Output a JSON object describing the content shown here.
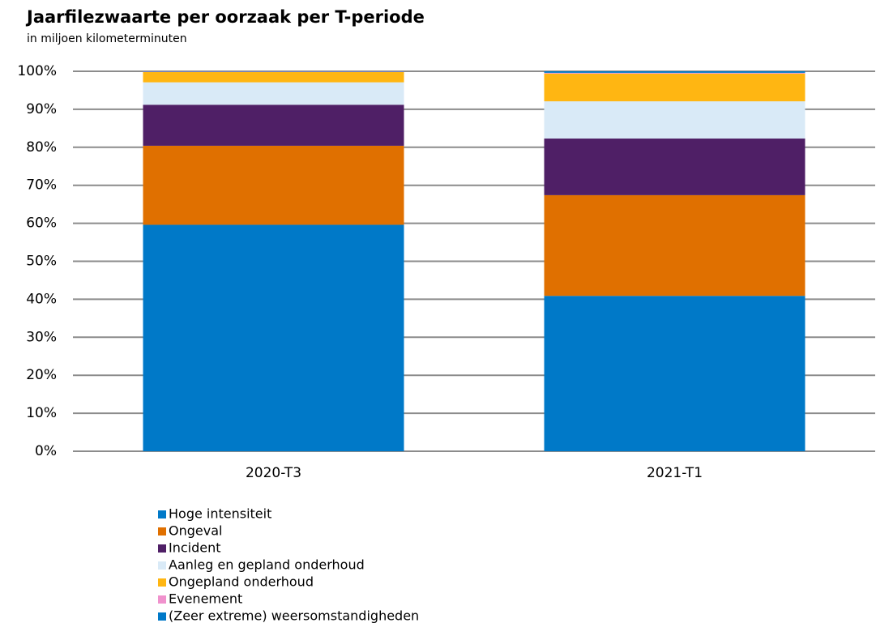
{
  "chart_data": {
    "type": "stacked_bar",
    "title": "Jaarfilezwaarte per oorzaak per T-periode",
    "subtitle": "in miljoen kilometerminuten",
    "categories": [
      "2020-T3",
      "2021-T1"
    ],
    "series": [
      {
        "name": "Hoge intensiteit",
        "color": "#0079c8",
        "values": [
          59.6,
          40.9
        ]
      },
      {
        "name": "Ongeval",
        "color": "#e07000",
        "values": [
          20.8,
          26.5
        ]
      },
      {
        "name": "Incident",
        "color": "#4f1f66",
        "values": [
          10.8,
          14.9
        ]
      },
      {
        "name": "Aanleg en gepland onderhoud",
        "color": "#d9eaf7",
        "values": [
          5.9,
          9.8
        ]
      },
      {
        "name": "Ongepland onderhoud",
        "color": "#ffb612",
        "values": [
          2.7,
          7.3
        ]
      },
      {
        "name": "Evenement",
        "color": "#f092cd",
        "values": [
          0.1,
          0.2
        ]
      },
      {
        "name": "(Zeer extreme) weersomstandigheden",
        "color": "#0079c8",
        "values": [
          0.1,
          0.4
        ]
      }
    ],
    "ylim": [
      0,
      100
    ],
    "yticks": [
      {
        "value": 0,
        "label": "0%"
      },
      {
        "value": 10,
        "label": "10%"
      },
      {
        "value": 20,
        "label": "20%"
      },
      {
        "value": 30,
        "label": "30%"
      },
      {
        "value": 40,
        "label": "40%"
      },
      {
        "value": 50,
        "label": "50%"
      },
      {
        "value": 60,
        "label": "60%"
      },
      {
        "value": 70,
        "label": "70%"
      },
      {
        "value": 80,
        "label": "80%"
      },
      {
        "value": 90,
        "label": "90%"
      },
      {
        "value": 100,
        "label": "100%"
      }
    ],
    "grid": true
  }
}
